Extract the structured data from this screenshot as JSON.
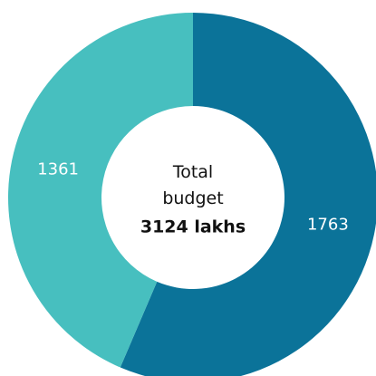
{
  "chart_data": {
    "type": "donut",
    "center_title": "Total budget",
    "center_value": "3124 lakhs",
    "categories": [
      null,
      null
    ],
    "values": [
      1763,
      1361
    ],
    "colors": [
      "#0b7399",
      "#47bfbf"
    ]
  }
}
